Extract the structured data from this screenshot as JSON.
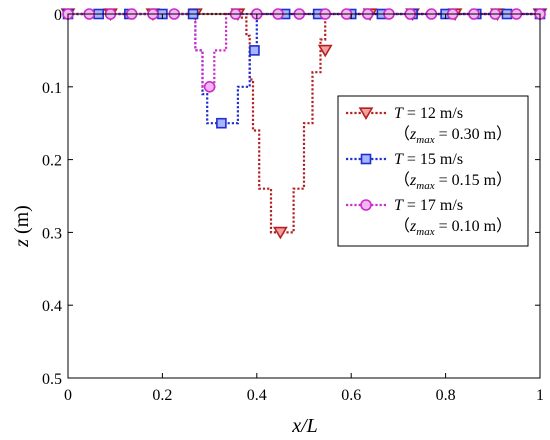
{
  "chart_data": {
    "type": "line",
    "xlabel": "x/L",
    "ylabel_var": "z",
    "ylabel_unit": " (m)",
    "xlim": [
      0,
      1
    ],
    "ylim": [
      0,
      0.5
    ],
    "y_inverted": true,
    "grid": false,
    "legend_placement": "right",
    "x_ticks": [
      "0",
      "0.2",
      "0.4",
      "0.6",
      "0.8",
      "1"
    ],
    "y_ticks": [
      "0",
      "0.1",
      "0.2",
      "0.3",
      "0.4",
      "0.5"
    ],
    "series": [
      {
        "name_var": "T",
        "name_value": " = 12 m/s",
        "sub_prefix": "（",
        "sub_var": "z",
        "sub_subscript": "max",
        "sub_value": " = 0.30 m）",
        "color": "#b22222",
        "marker": "triangle-down",
        "line": [
          [
            0,
            0
          ],
          [
            0.36,
            0
          ],
          [
            0.36,
            0.005
          ],
          [
            0.378,
            0.005
          ],
          [
            0.378,
            0.03
          ],
          [
            0.385,
            0.03
          ],
          [
            0.385,
            0.09
          ],
          [
            0.392,
            0.09
          ],
          [
            0.392,
            0.16
          ],
          [
            0.405,
            0.16
          ],
          [
            0.405,
            0.24
          ],
          [
            0.43,
            0.24
          ],
          [
            0.43,
            0.3
          ],
          [
            0.478,
            0.3
          ],
          [
            0.478,
            0.24
          ],
          [
            0.5,
            0.24
          ],
          [
            0.5,
            0.15
          ],
          [
            0.518,
            0.15
          ],
          [
            0.518,
            0.08
          ],
          [
            0.535,
            0.08
          ],
          [
            0.535,
            0.035
          ],
          [
            0.545,
            0.035
          ],
          [
            0.545,
            0
          ],
          [
            1.0,
            0
          ]
        ],
        "markers": [
          [
            0,
            0
          ],
          [
            0.09,
            0
          ],
          [
            0.18,
            0
          ],
          [
            0.27,
            0
          ],
          [
            0.36,
            0
          ],
          [
            0.45,
            0.3
          ],
          [
            0.545,
            0.05
          ],
          [
            0.64,
            0
          ],
          [
            0.73,
            0
          ],
          [
            0.82,
            0
          ],
          [
            0.91,
            0
          ],
          [
            1.0,
            0
          ]
        ]
      },
      {
        "name_var": "T",
        "name_value": " = 15 m/s",
        "sub_prefix": "（",
        "sub_var": "z",
        "sub_subscript": "max",
        "sub_value": " = 0.15 m）",
        "color": "#1f2fd0",
        "marker": "square",
        "line": [
          [
            0,
            0
          ],
          [
            0.27,
            0
          ],
          [
            0.27,
            0.05
          ],
          [
            0.285,
            0.05
          ],
          [
            0.285,
            0.11
          ],
          [
            0.295,
            0.11
          ],
          [
            0.295,
            0.15
          ],
          [
            0.36,
            0.15
          ],
          [
            0.36,
            0.1
          ],
          [
            0.385,
            0.1
          ],
          [
            0.385,
            0.05
          ],
          [
            0.4,
            0.05
          ],
          [
            0.4,
            0
          ],
          [
            1.0,
            0
          ]
        ],
        "markers": [
          [
            0,
            0
          ],
          [
            0.065,
            0
          ],
          [
            0.13,
            0
          ],
          [
            0.2,
            0
          ],
          [
            0.265,
            0
          ],
          [
            0.325,
            0.15
          ],
          [
            0.395,
            0.05
          ],
          [
            0.46,
            0
          ],
          [
            0.53,
            0
          ],
          [
            0.6,
            0
          ],
          [
            0.665,
            0
          ],
          [
            0.73,
            0
          ],
          [
            0.8,
            0
          ],
          [
            0.865,
            0
          ],
          [
            0.93,
            0
          ],
          [
            1.0,
            0
          ]
        ]
      },
      {
        "name_var": "T",
        "name_value": " = 17 m/s",
        "sub_prefix": "（",
        "sub_var": "z",
        "sub_subscript": "max",
        "sub_value": " = 0.10 m）",
        "color": "#cc2ccc",
        "marker": "circle",
        "line": [
          [
            0,
            0
          ],
          [
            0.27,
            0
          ],
          [
            0.27,
            0.05
          ],
          [
            0.285,
            0.05
          ],
          [
            0.285,
            0.1
          ],
          [
            0.31,
            0.1
          ],
          [
            0.31,
            0.05
          ],
          [
            0.335,
            0.05
          ],
          [
            0.335,
            0
          ],
          [
            1.0,
            0
          ]
        ],
        "markers": [
          [
            0,
            0
          ],
          [
            0.045,
            0
          ],
          [
            0.09,
            0
          ],
          [
            0.135,
            0
          ],
          [
            0.18,
            0
          ],
          [
            0.225,
            0
          ],
          [
            0.3,
            0.1
          ],
          [
            0.355,
            0
          ],
          [
            0.4,
            0
          ],
          [
            0.445,
            0
          ],
          [
            0.49,
            0
          ],
          [
            0.545,
            0
          ],
          [
            0.59,
            0
          ],
          [
            0.635,
            0
          ],
          [
            0.68,
            0
          ],
          [
            0.725,
            0
          ],
          [
            0.77,
            0
          ],
          [
            0.815,
            0
          ],
          [
            0.86,
            0
          ],
          [
            0.905,
            0
          ],
          [
            0.95,
            0
          ],
          [
            1.0,
            0
          ]
        ]
      }
    ]
  }
}
